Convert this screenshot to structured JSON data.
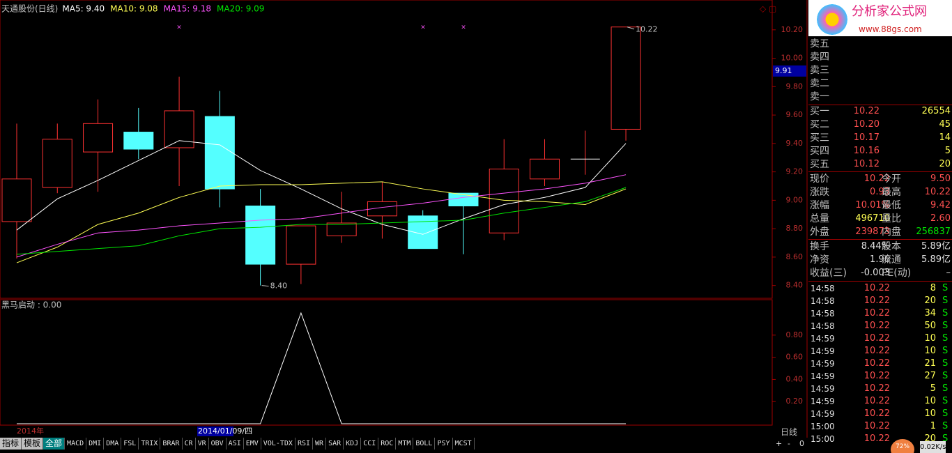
{
  "chart_data": [
    {
      "type": "candlestick",
      "title": "天通股份(日线)",
      "categories": [
        null,
        null,
        null,
        null,
        null,
        null,
        null,
        null,
        null,
        null,
        null,
        null,
        null,
        null,
        null,
        null
      ],
      "open": [
        8.85,
        9.09,
        9.34,
        9.48,
        9.37,
        9.59,
        8.96,
        8.55,
        8.75,
        8.89,
        8.89,
        9.05,
        8.77,
        9.15,
        9.29,
        9.5
      ],
      "high": [
        9.54,
        9.54,
        9.71,
        9.65,
        9.87,
        9.77,
        9.08,
        8.82,
        9.06,
        9.13,
        8.93,
        9.05,
        9.43,
        9.43,
        9.49,
        10.22
      ],
      "low": [
        8.59,
        9.05,
        9.06,
        9.29,
        9.1,
        8.95,
        8.4,
        8.41,
        8.7,
        8.73,
        8.66,
        8.62,
        8.72,
        9.1,
        9.18,
        9.42
      ],
      "close": [
        9.15,
        9.43,
        9.54,
        9.36,
        9.63,
        9.08,
        8.55,
        8.82,
        8.84,
        8.99,
        8.66,
        8.96,
        9.22,
        9.29,
        9.29,
        10.22
      ],
      "up_color": "#ff3232",
      "down_color": "#54ffff",
      "series": [
        {
          "name": "MA5: 9.40",
          "color": "#ffffff",
          "values": [
            8.79,
            9.01,
            9.14,
            9.28,
            9.42,
            9.39,
            9.21,
            9.08,
            8.94,
            8.83,
            8.76,
            8.87,
            8.97,
            9.02,
            9.09,
            9.4
          ]
        },
        {
          "name": "MA10: 9.08",
          "color": "#ffff54",
          "values": [
            8.56,
            8.67,
            8.83,
            8.91,
            9.02,
            9.1,
            9.11,
            9.11,
            9.12,
            9.13,
            9.08,
            9.04,
            9.0,
            8.99,
            8.97,
            9.08
          ]
        },
        {
          "name": "MA15: 9.18",
          "color": "#ff54ff",
          "values": [
            8.6,
            8.69,
            8.77,
            8.79,
            8.82,
            8.84,
            8.86,
            8.87,
            8.91,
            8.95,
            8.98,
            9.02,
            9.05,
            9.08,
            9.12,
            9.18
          ]
        },
        {
          "name": "MA20: 9.09",
          "color": "#00e600",
          "values": [
            8.62,
            8.64,
            8.66,
            8.68,
            8.75,
            8.8,
            8.81,
            8.83,
            8.83,
            8.84,
            8.85,
            8.86,
            8.91,
            8.95,
            8.99,
            9.09
          ]
        }
      ],
      "ylim": [
        8.31,
        10.41
      ],
      "yticks": [
        {
          "value": 8.4,
          "label": "8.40"
        },
        {
          "value": 8.6,
          "label": "8.60"
        },
        {
          "value": 8.8,
          "label": "8.80"
        },
        {
          "value": 9,
          "label": "9.00"
        },
        {
          "value": 9.2,
          "label": "9.20"
        },
        {
          "value": 9.4,
          "label": "9.40"
        },
        {
          "value": 9.6,
          "label": "9.60"
        },
        {
          "value": 9.8,
          "label": "9.80"
        },
        {
          "value": 10,
          "label": "10.00"
        },
        {
          "value": 10.2,
          "label": "10.20"
        }
      ],
      "high_label": "10.22",
      "low_label": "8.40",
      "cursor_price": {
        "value": 9.91,
        "label": "9.91"
      }
    },
    {
      "type": "line",
      "title": "黑马启动 : 0.00",
      "color": "#ffffff",
      "values": [
        0,
        0,
        0,
        0,
        0,
        0,
        0,
        1,
        0,
        0,
        0,
        0,
        0,
        0,
        0,
        0
      ],
      "ylim": [
        0,
        1.12
      ],
      "yticks": [
        {
          "value": 0.2,
          "label": "0.20"
        },
        {
          "value": 0.4,
          "label": "0.40"
        },
        {
          "value": 0.6,
          "label": "0.60"
        },
        {
          "value": 0.8,
          "label": "0.80"
        }
      ]
    }
  ],
  "timeline": {
    "year": "2014年",
    "cursor_date": "2014/01/09/四",
    "period": "日线",
    "zoom": [
      "+",
      "-",
      "0"
    ]
  },
  "tabs": [
    "指标",
    "模板",
    "全部",
    "MACD",
    "DMI",
    "DMA",
    "FSL",
    "TRIX",
    "BRAR",
    "CR",
    "VR",
    "OBV",
    "ASI",
    "EMV",
    "VOL-TDX",
    "RSI",
    "WR",
    "SAR",
    "KDJ",
    "CCI",
    "ROC",
    "MTM",
    "BOLL",
    "PSY",
    "MCST"
  ],
  "logo": {
    "title": "分析家公式网",
    "url": "www.88gs.com"
  },
  "order_book": {
    "sell": [
      "卖五",
      "卖四",
      "卖三",
      "卖二",
      "卖一"
    ],
    "buy": [
      [
        "买一",
        "10.22",
        "26554"
      ],
      [
        "买二",
        "10.20",
        "45"
      ],
      [
        "买三",
        "10.17",
        "14"
      ],
      [
        "买四",
        "10.16",
        "5"
      ],
      [
        "买五",
        "10.12",
        "20"
      ]
    ]
  },
  "quote": [
    [
      "现价",
      "10.22",
      "今开",
      "9.50"
    ],
    [
      "涨跌",
      "0.93",
      "最高",
      "10.22"
    ],
    [
      "涨幅",
      "10.01%",
      "最低",
      "9.42"
    ],
    [
      "总量",
      "496710",
      "量比",
      "2.60"
    ],
    [
      "外盘",
      "239873",
      "内盘",
      "256837"
    ]
  ],
  "fundamentals": [
    [
      "换手",
      "8.44%",
      "股本",
      "5.89亿"
    ],
    [
      "净资",
      "1.96",
      "流通",
      "5.89亿"
    ],
    [
      "收益(三)",
      "-0.003",
      "PE(动)",
      "–"
    ]
  ],
  "trades": [
    [
      "14:58",
      "10.22",
      "8",
      "S"
    ],
    [
      "14:58",
      "10.22",
      "20",
      "S"
    ],
    [
      "14:58",
      "10.22",
      "34",
      "S"
    ],
    [
      "14:58",
      "10.22",
      "50",
      "S"
    ],
    [
      "14:59",
      "10.22",
      "10",
      "S"
    ],
    [
      "14:59",
      "10.22",
      "10",
      "S"
    ],
    [
      "14:59",
      "10.22",
      "21",
      "S"
    ],
    [
      "14:59",
      "10.22",
      "27",
      "S"
    ],
    [
      "14:59",
      "10.22",
      "5",
      "S"
    ],
    [
      "14:59",
      "10.22",
      "10",
      "S"
    ],
    [
      "14:59",
      "10.22",
      "10",
      "S"
    ],
    [
      "15:00",
      "10.22",
      "1",
      "S"
    ],
    [
      "15:00",
      "10.22",
      "20",
      "S"
    ]
  ],
  "status": {
    "speed": "0.02K/s",
    "percent": "72%"
  }
}
